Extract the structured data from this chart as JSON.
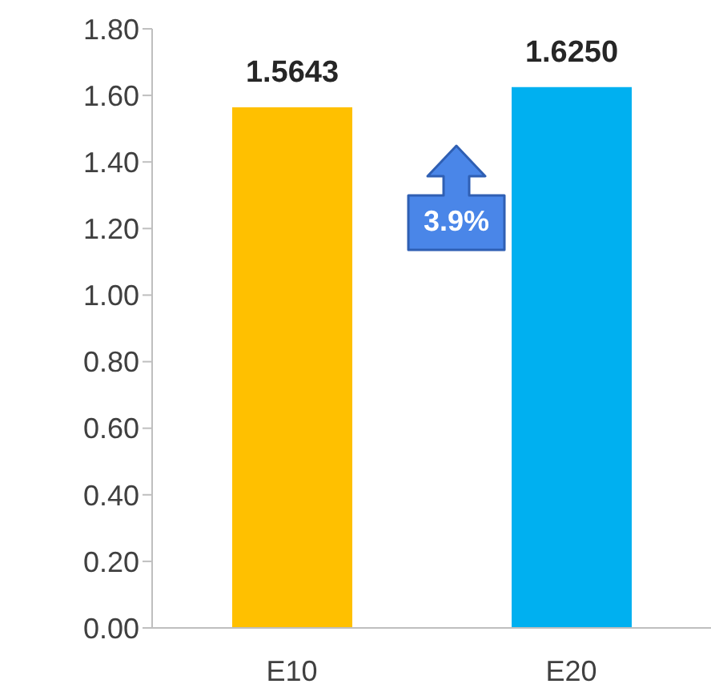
{
  "chart_data": {
    "type": "bar",
    "categories": [
      "E10",
      "E20"
    ],
    "values": [
      1.5643,
      1.625
    ],
    "colors": [
      "#ffc000",
      "#00b0f0"
    ],
    "value_labels": [
      "1.5643",
      "1.6250"
    ],
    "ylim": [
      0,
      1.8
    ],
    "yticks": [
      {
        "value": 0,
        "label": "0.00"
      },
      {
        "value": 0.2,
        "label": "0.20"
      },
      {
        "value": 0.4,
        "label": "0.40"
      },
      {
        "value": 0.6,
        "label": "0.60"
      },
      {
        "value": 0.8,
        "label": "0.80"
      },
      {
        "value": 1,
        "label": "1.00"
      },
      {
        "value": 1.2,
        "label": "1.20"
      },
      {
        "value": 1.4,
        "label": "1.40"
      },
      {
        "value": 1.6,
        "label": "1.60"
      },
      {
        "value": 1.8,
        "label": "1.80"
      }
    ],
    "annotations": [
      "3.9%"
    ],
    "grid": false,
    "legend": false
  }
}
